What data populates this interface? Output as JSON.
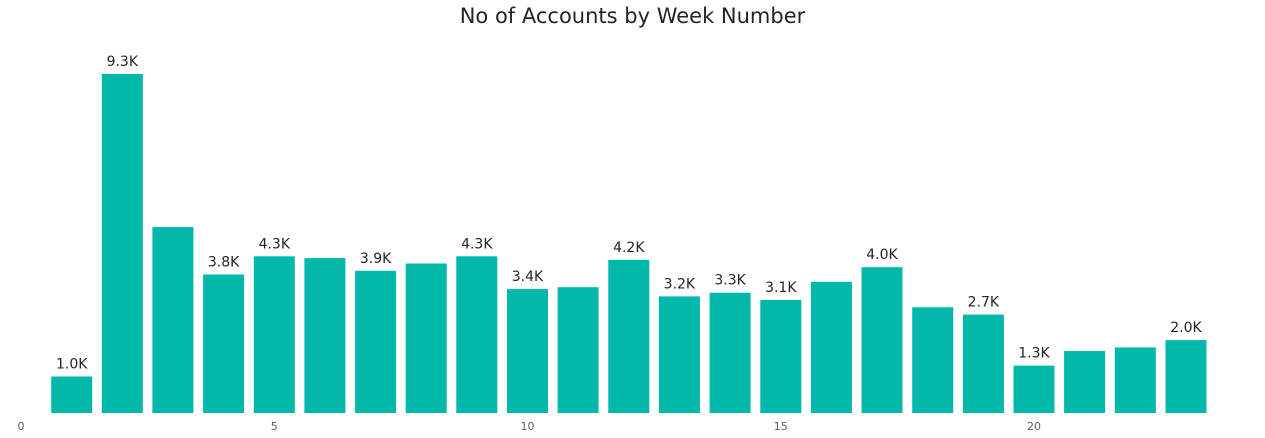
{
  "chart_data": {
    "type": "bar",
    "title": "No of Accounts by Week Number",
    "xlabel": "",
    "ylabel": "",
    "bar_color": "#01B8AA",
    "x": [
      1,
      2,
      3,
      4,
      5,
      6,
      7,
      8,
      9,
      10,
      11,
      12,
      13,
      14,
      15,
      16,
      17,
      18,
      19,
      20,
      21,
      22,
      23
    ],
    "values": [
      1000,
      9300,
      5100,
      3800,
      4300,
      4250,
      3900,
      4100,
      4300,
      3400,
      3450,
      4200,
      3200,
      3300,
      3100,
      3600,
      4000,
      2900,
      2700,
      1300,
      1700,
      1800,
      2000
    ],
    "data_labels": [
      "1.0K",
      "9.3K",
      "",
      "3.8K",
      "4.3K",
      "",
      "3.9K",
      "",
      "4.3K",
      "3.4K",
      "",
      "4.2K",
      "3.2K",
      "3.3K",
      "3.1K",
      "",
      "4.0K",
      "",
      "2.7K",
      "1.3K",
      "",
      "",
      "2.0K"
    ],
    "x_ticks": [
      0,
      5,
      10,
      15,
      20
    ],
    "x_tick_labels": [
      "0",
      "5",
      "10",
      "15",
      "20"
    ],
    "xlim": [
      0,
      24
    ],
    "ylim": [
      0,
      9300
    ],
    "grid": false,
    "legend": "none"
  }
}
